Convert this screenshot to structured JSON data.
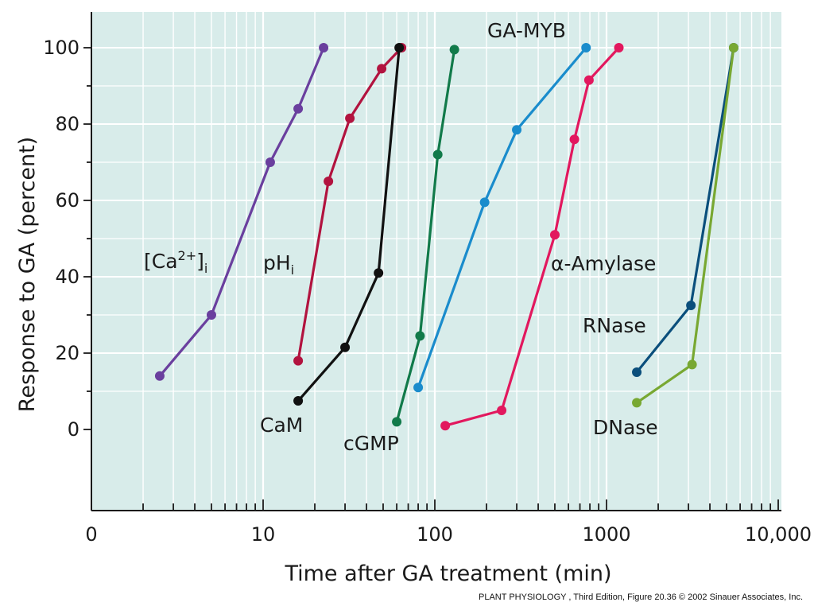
{
  "chart_data": {
    "type": "line",
    "xscale": "log",
    "xlabel": "Time after GA treatment (min)",
    "ylabel": "Response to GA (percent)",
    "xlim": [
      1,
      10000
    ],
    "ylim": [
      -20,
      105
    ],
    "grid": true,
    "x_tick_labels": [
      {
        "value": 1,
        "label": "0"
      },
      {
        "value": 10,
        "label": "10"
      },
      {
        "value": 100,
        "label": "100"
      },
      {
        "value": 1000,
        "label": "1000"
      },
      {
        "value": 10000,
        "label": "10,000"
      }
    ],
    "y_ticks": [
      0,
      20,
      40,
      60,
      80,
      100
    ],
    "background_color": "#d8ecea",
    "grid_color": "#ffffff",
    "series": [
      {
        "name": "[Ca2+]i",
        "label_main": "[Ca",
        "label_sup": "2+",
        "label_close": "]",
        "label_sub": "i",
        "color": "#6a3f9e",
        "x": [
          2.5,
          5,
          11,
          16,
          22.5
        ],
        "y": [
          14,
          30,
          70,
          84,
          100
        ]
      },
      {
        "name": "pHi",
        "label_main": "pH",
        "label_sub": "i",
        "color": "#b2133f",
        "x": [
          16,
          24,
          32,
          49,
          64
        ],
        "y": [
          18,
          65,
          81.5,
          94.5,
          100
        ]
      },
      {
        "name": "CaM",
        "label_main": "CaM",
        "color": "#111111",
        "x": [
          16,
          30,
          47,
          62
        ],
        "y": [
          7.5,
          21.5,
          41,
          100
        ]
      },
      {
        "name": "cGMP",
        "label_main": "cGMP",
        "color": "#117a4a",
        "x": [
          60,
          82,
          104,
          130
        ],
        "y": [
          2,
          24.5,
          72,
          99.5
        ]
      },
      {
        "name": "GA-MYB",
        "label_main": "GA-MYB",
        "color": "#1a8ccc",
        "x": [
          80,
          195,
          300,
          760
        ],
        "y": [
          11,
          59.5,
          78.5,
          100
        ]
      },
      {
        "name": "α-Amylase",
        "label_main": "α-Amylase",
        "color": "#e2185e",
        "x": [
          115,
          245,
          500,
          650,
          790,
          1180
        ],
        "y": [
          1,
          5,
          51,
          76,
          91.5,
          100
        ]
      },
      {
        "name": "RNase",
        "label_main": "RNase",
        "color": "#0b4f7c",
        "x": [
          1500,
          3100,
          5500
        ],
        "y": [
          15,
          32.5,
          100
        ]
      },
      {
        "name": "DNase",
        "label_main": "DNase",
        "color": "#78a832",
        "x": [
          1500,
          3150,
          5500
        ],
        "y": [
          7,
          17,
          100
        ]
      }
    ]
  },
  "credit": "PLANT PHYSIOLOGY , Third Edition, Figure 20.36  © 2002 Sinauer Associates, Inc."
}
